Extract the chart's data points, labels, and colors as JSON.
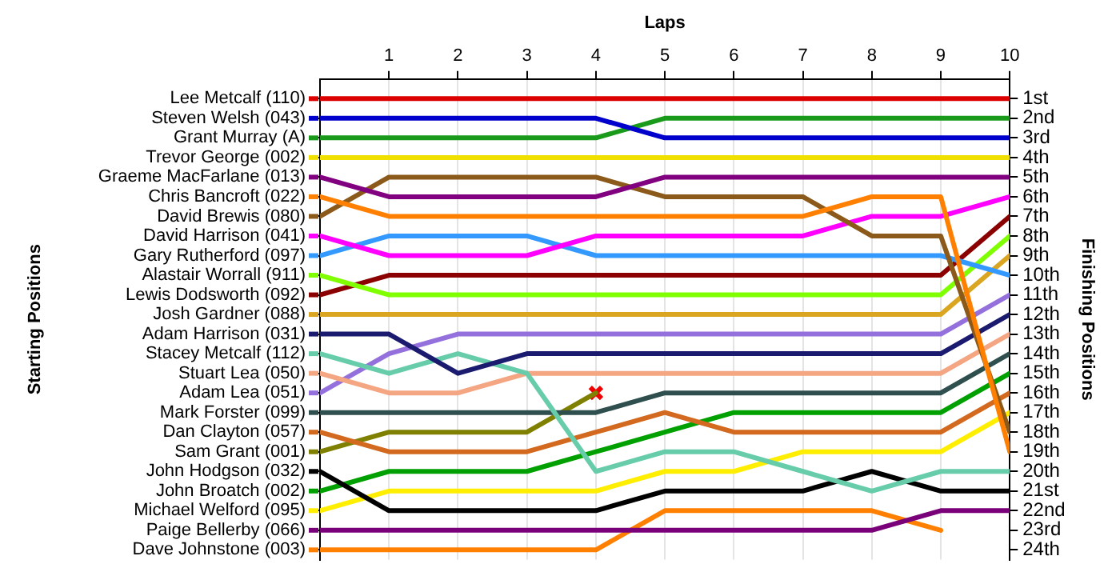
{
  "chart_data": {
    "type": "line",
    "xlabel": "Laps",
    "ylabel": "Finishing Positions",
    "annotations": [
      "Starting Positions"
    ],
    "grid": "x",
    "legend": "left",
    "marker": "none",
    "line_style": "solid",
    "x": [
      0,
      1,
      2,
      3,
      4,
      5,
      6,
      7,
      8,
      9,
      10
    ],
    "xlim": [
      0,
      10
    ],
    "xticks": [
      1,
      2,
      3,
      4,
      5,
      6,
      7,
      8,
      9,
      10
    ],
    "ylim": [
      24.5,
      0
    ],
    "yticks": [
      {
        "value": 1,
        "label": "1st"
      },
      {
        "value": 2,
        "label": "2nd"
      },
      {
        "value": 3,
        "label": "3rd"
      },
      {
        "value": 4,
        "label": "4th"
      },
      {
        "value": 5,
        "label": "5th"
      },
      {
        "value": 6,
        "label": "6th"
      },
      {
        "value": 7,
        "label": "7th"
      },
      {
        "value": 8,
        "label": "8th"
      },
      {
        "value": 9,
        "label": "9th"
      },
      {
        "value": 10,
        "label": "10th"
      },
      {
        "value": 11,
        "label": "11th"
      },
      {
        "value": 12,
        "label": "12th"
      },
      {
        "value": 13,
        "label": "13th"
      },
      {
        "value": 14,
        "label": "14th"
      },
      {
        "value": 15,
        "label": "15th"
      },
      {
        "value": 16,
        "label": "16th"
      },
      {
        "value": 17,
        "label": "17th"
      },
      {
        "value": 18,
        "label": "18th"
      },
      {
        "value": 19,
        "label": "19th"
      },
      {
        "value": 20,
        "label": "20th"
      },
      {
        "value": 21,
        "label": "21st"
      },
      {
        "value": 22,
        "label": "22nd"
      },
      {
        "value": 23,
        "label": "23rd"
      },
      {
        "value": 24,
        "label": "24th"
      }
    ],
    "series": [
      {
        "name": "Lee Metcalf (110)",
        "color": "#dd0000",
        "values": [
          1,
          1,
          1,
          1,
          1,
          1,
          1,
          1,
          1,
          1,
          1
        ]
      },
      {
        "name": "Steven Welsh (043)",
        "color": "#0000cc",
        "values": [
          2,
          2,
          2,
          2,
          2,
          3,
          3,
          3,
          3,
          3,
          3
        ]
      },
      {
        "name": "Grant Murray (A)",
        "color": "#1a9a1a",
        "values": [
          3,
          3,
          3,
          3,
          3,
          2,
          2,
          2,
          2,
          2,
          2
        ]
      },
      {
        "name": "Trevor George (002)",
        "color": "#f0e000",
        "values": [
          4,
          4,
          4,
          4,
          4,
          4,
          4,
          4,
          4,
          4,
          4
        ]
      },
      {
        "name": "Graeme MacFarlane (013)",
        "color": "#800080",
        "values": [
          5,
          6,
          6,
          6,
          6,
          5,
          5,
          5,
          5,
          5,
          5
        ]
      },
      {
        "name": "Chris Bancroft (022)",
        "color": "#ff8000",
        "values": [
          6,
          7,
          7,
          7,
          7,
          7,
          7,
          7,
          6,
          6,
          19
        ]
      },
      {
        "name": "David Brewis (080)",
        "color": "#8b5a1a",
        "values": [
          7,
          5,
          5,
          5,
          5,
          6,
          6,
          6,
          8,
          8,
          18
        ]
      },
      {
        "name": "David Harrison (041)",
        "color": "#ff00ff",
        "values": [
          8,
          9,
          9,
          9,
          8,
          8,
          8,
          8,
          7,
          7,
          6
        ]
      },
      {
        "name": "Gary Rutherford (097)",
        "color": "#3399ff",
        "values": [
          9,
          8,
          8,
          8,
          9,
          9,
          9,
          9,
          9,
          9,
          10
        ]
      },
      {
        "name": "Alastair Worrall (911)",
        "color": "#80ff00",
        "values": [
          10,
          11,
          11,
          11,
          11,
          11,
          11,
          11,
          11,
          11,
          8
        ]
      },
      {
        "name": "Lewis Dodsworth (092)",
        "color": "#8b0000",
        "values": [
          11,
          10,
          10,
          10,
          10,
          10,
          10,
          10,
          10,
          10,
          7
        ]
      },
      {
        "name": "Josh Gardner (088)",
        "color": "#daa520",
        "values": [
          12,
          12,
          12,
          12,
          12,
          12,
          12,
          12,
          12,
          12,
          9
        ]
      },
      {
        "name": "Adam Harrison (031)",
        "color": "#1a1a6e",
        "values": [
          13,
          13,
          15,
          14,
          14,
          14,
          14,
          14,
          14,
          14,
          12
        ]
      },
      {
        "name": "Stacey Metcalf (112)",
        "color": "#66ccaa",
        "values": [
          14,
          15,
          14,
          15,
          20,
          19,
          19,
          20,
          21,
          20,
          20
        ]
      },
      {
        "name": "Stuart Lea (050)",
        "color": "#f4a582",
        "values": [
          15,
          16,
          16,
          15,
          15,
          15,
          15,
          15,
          15,
          15,
          13
        ]
      },
      {
        "name": "Adam Lea (051)",
        "color": "#9370db",
        "values": [
          16,
          14,
          13,
          13,
          13,
          13,
          13,
          13,
          13,
          13,
          11
        ]
      },
      {
        "name": "Mark Forster (099)",
        "color": "#2f4f4f",
        "values": [
          17,
          17,
          17,
          17,
          17,
          16,
          16,
          16,
          16,
          16,
          14
        ]
      },
      {
        "name": "Dan Clayton (057)",
        "color": "#d2691e",
        "values": [
          18,
          19,
          19,
          19,
          18,
          17,
          18,
          18,
          18,
          18,
          16
        ]
      },
      {
        "name": "Sam Grant (001)",
        "color": "#808000",
        "values": [
          19,
          18,
          18,
          18,
          16,
          null,
          null,
          null,
          null,
          null,
          null
        ]
      },
      {
        "name": "John Hodgson (032)",
        "color": "#000000",
        "values": [
          20,
          22,
          22,
          22,
          22,
          21,
          21,
          21,
          20,
          21,
          21
        ]
      },
      {
        "name": "John Broatch (002)",
        "color": "#00a000",
        "values": [
          21,
          20,
          20,
          20,
          19,
          18,
          17,
          17,
          17,
          17,
          15
        ]
      },
      {
        "name": "Michael Welford (095)",
        "color": "#ffee00",
        "values": [
          22,
          21,
          21,
          21,
          21,
          20,
          20,
          19,
          19,
          19,
          17
        ]
      },
      {
        "name": "Paige Bellerby (066)",
        "color": "#7a007a",
        "values": [
          23,
          23,
          23,
          23,
          23,
          23,
          23,
          23,
          23,
          22,
          22
        ]
      },
      {
        "name": "Dave Johnstone (003)",
        "color": "#ff8000",
        "values": [
          24,
          24,
          24,
          24,
          24,
          22,
          22,
          22,
          22,
          23,
          null
        ]
      },
      {
        "type": "scatter",
        "color": "#ee0000",
        "marker": "cross",
        "x": [
          4
        ],
        "values": [
          16
        ]
      }
    ]
  }
}
